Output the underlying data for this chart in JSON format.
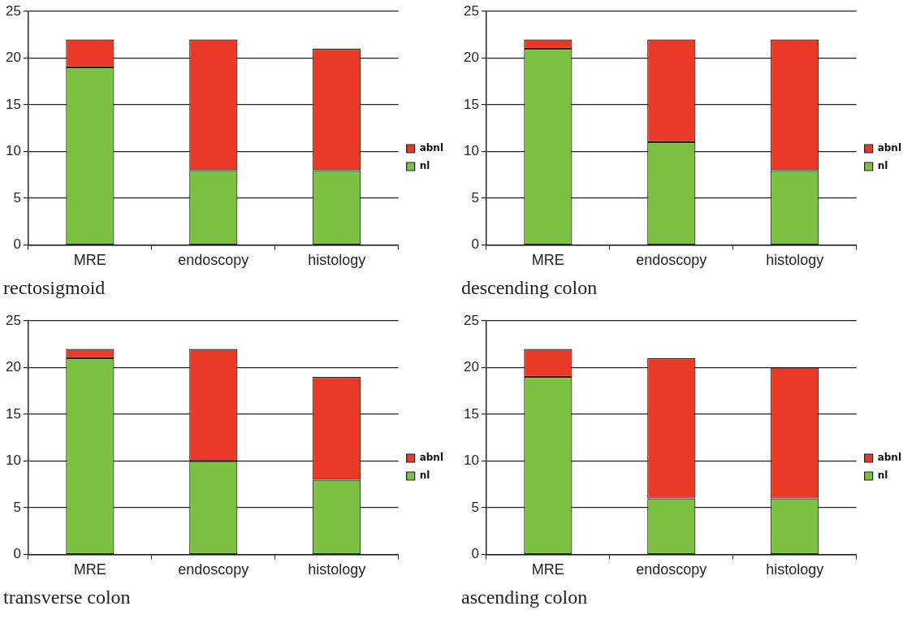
{
  "chart_data": [
    {
      "type": "bar",
      "title": "rectosigmoid",
      "categories": [
        "MRE",
        "endoscopy",
        "histology"
      ],
      "stacked": true,
      "ylim": [
        0,
        25
      ],
      "yticks": [
        0,
        5,
        10,
        15,
        20,
        25
      ],
      "grid": "y",
      "legend": "right",
      "series": [
        {
          "name": "nl",
          "color": "#7dc142",
          "values": [
            19,
            8,
            8
          ]
        },
        {
          "name": "abnl",
          "color": "#e83a26",
          "values": [
            3,
            14,
            13
          ]
        }
      ]
    },
    {
      "type": "bar",
      "title": "descending colon",
      "categories": [
        "MRE",
        "endoscopy",
        "histology"
      ],
      "stacked": true,
      "ylim": [
        0,
        25
      ],
      "yticks": [
        0,
        5,
        10,
        15,
        20,
        25
      ],
      "grid": "y",
      "legend": "right",
      "series": [
        {
          "name": "nl",
          "color": "#7dc142",
          "values": [
            21,
            11,
            8
          ]
        },
        {
          "name": "abnl",
          "color": "#e83a26",
          "values": [
            1,
            11,
            14
          ]
        }
      ]
    },
    {
      "type": "bar",
      "title": "transverse colon",
      "categories": [
        "MRE",
        "endoscopy",
        "histology"
      ],
      "stacked": true,
      "ylim": [
        0,
        25
      ],
      "yticks": [
        0,
        5,
        10,
        15,
        20,
        25
      ],
      "grid": "y",
      "legend": "right",
      "series": [
        {
          "name": "nl",
          "color": "#7dc142",
          "values": [
            21,
            10,
            8
          ]
        },
        {
          "name": "abnl",
          "color": "#e83a26",
          "values": [
            1,
            12,
            11
          ]
        }
      ]
    },
    {
      "type": "bar",
      "title": "ascending colon",
      "categories": [
        "MRE",
        "endoscopy",
        "histology"
      ],
      "stacked": true,
      "ylim": [
        0,
        25
      ],
      "yticks": [
        0,
        5,
        10,
        15,
        20,
        25
      ],
      "grid": "y",
      "legend": "right",
      "series": [
        {
          "name": "nl",
          "color": "#7dc142",
          "values": [
            19,
            6,
            6
          ]
        },
        {
          "name": "abnl",
          "color": "#e83a26",
          "values": [
            3,
            15,
            14
          ]
        }
      ]
    }
  ]
}
